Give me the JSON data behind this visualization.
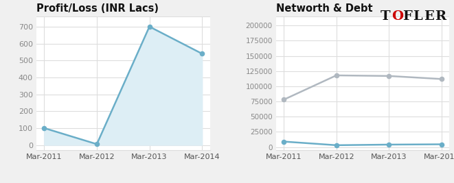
{
  "left_title": "Profit/Loss (INR Lacs)",
  "right_title": "Networth & Debt",
  "x_labels": [
    "Mar-2011",
    "Mar-2012",
    "Mar-2013",
    "Mar-2014"
  ],
  "x_values": [
    0,
    1,
    2,
    3
  ],
  "profit_loss": [
    100,
    5,
    700,
    540
  ],
  "networth": [
    78000,
    118000,
    117000,
    112000
  ],
  "debt": [
    9000,
    3000,
    4000,
    4500
  ],
  "profit_line_color": "#6aaec8",
  "profit_fill_color": "#ddeef5",
  "networth_line_color": "#b0b8c0",
  "debt_line_color": "#6aaec8",
  "background_color": "#f0f0f0",
  "panel_background": "#ffffff",
  "title_fontsize": 10.5,
  "tick_fontsize": 8,
  "ytick_color": "#888888",
  "xtick_color": "#555555",
  "grid_color": "#dddddd",
  "tofler_T_color": "#111111",
  "tofler_O_color": "#cc0000",
  "tofler_rest_color": "#111111",
  "tofler_letters": [
    "T",
    "O",
    "F",
    "L",
    "E",
    "R"
  ],
  "tofler_colors": [
    "#111111",
    "#cc0000",
    "#111111",
    "#111111",
    "#111111",
    "#111111"
  ]
}
